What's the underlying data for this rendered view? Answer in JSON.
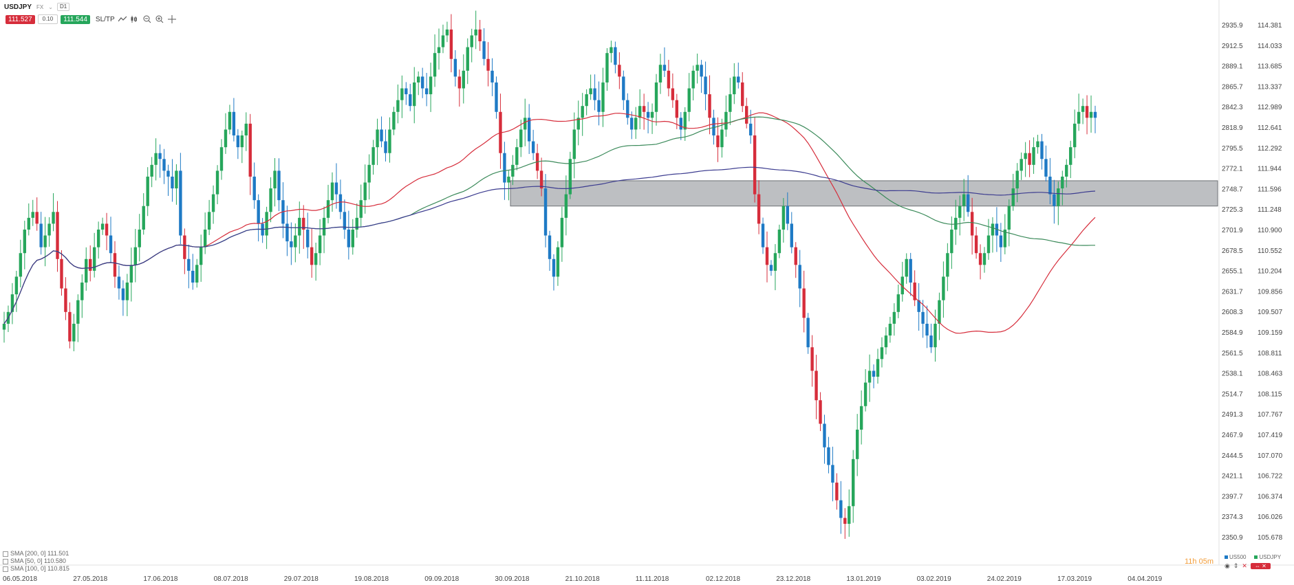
{
  "toolbar": {
    "symbol": "USDJPY",
    "market_tag": "FX",
    "interval": "D1",
    "bid": "111.527",
    "lot": "0.10",
    "ask": "111.544",
    "sltp_label": "SL/TP",
    "icons": [
      "line-chart-icon",
      "candles-icon",
      "zoom-out-icon",
      "zoom-in-icon",
      "crosshair-icon"
    ]
  },
  "legend": {
    "items": [
      {
        "label": "SMA [200, 0] 111.501",
        "color": "#3b3b8f"
      },
      {
        "label": "SMA [50, 0] 110.580",
        "color": "#d62d3b"
      },
      {
        "label": "SMA [100, 0] 110.815",
        "color": "#3b8a5a"
      }
    ]
  },
  "countdown": "11h 05m",
  "instruments": [
    {
      "label": "US500",
      "color": "#1e7ac5"
    },
    {
      "label": "USDJPY",
      "color": "#26a65b"
    }
  ],
  "colors": {
    "up": "#26a65b",
    "down_red": "#d62d3b",
    "down_blue": "#1e7ac5",
    "sma50": "#d62d3b",
    "sma100": "#3b8a5a",
    "sma200": "#3b3b8f",
    "zone": "#9a9da2"
  },
  "chart_data": {
    "type": "candlestick",
    "title": "",
    "left_axis": {
      "ticks": [
        "2935.9",
        "2912.5",
        "2889.1",
        "2865.7",
        "2842.3",
        "2818.9",
        "2795.5",
        "2772.1",
        "2748.7",
        "2725.3",
        "2701.9",
        "2678.5",
        "2655.1",
        "2631.7",
        "2608.3",
        "2584.9",
        "2561.5",
        "2538.1",
        "2514.7",
        "2491.3",
        "2467.9",
        "2444.5",
        "2421.1",
        "2397.7",
        "2374.3",
        "2350.9"
      ]
    },
    "right_axis": {
      "ticks": [
        "114.381",
        "114.033",
        "113.685",
        "113.337",
        "112.989",
        "112.641",
        "112.292",
        "111.944",
        "111.596",
        "111.248",
        "110.900",
        "110.552",
        "110.204",
        "109.856",
        "109.507",
        "109.159",
        "108.811",
        "108.463",
        "108.115",
        "107.767",
        "107.419",
        "107.070",
        "106.722",
        "106.374",
        "106.026",
        "105.678"
      ]
    },
    "x_ticks": [
      "06.05.2018",
      "27.05.2018",
      "17.06.2018",
      "08.07.2018",
      "29.07.2018",
      "19.08.2018",
      "09.09.2018",
      "30.09.2018",
      "21.10.2018",
      "11.11.2018",
      "02.12.2018",
      "23.12.2018",
      "13.01.2019",
      "03.02.2019",
      "24.02.2019",
      "17.03.2019",
      "04.04.2019"
    ],
    "zone": {
      "upper": 111.73,
      "lower": 111.3
    },
    "usdjpy_closes": [
      109.3,
      109.5,
      109.8,
      110.1,
      110.5,
      110.9,
      111.1,
      111.2,
      111.0,
      110.6,
      110.8,
      111.0,
      111.2,
      110.4,
      109.9,
      109.5,
      109.0,
      109.3,
      109.7,
      110.0,
      110.4,
      110.2,
      110.6,
      110.9,
      111.0,
      110.8,
      110.5,
      110.1,
      109.9,
      109.7,
      110.0,
      110.3,
      110.6,
      110.9,
      111.3,
      111.8,
      112.0,
      112.2,
      112.1,
      111.9,
      111.8,
      111.6,
      111.9,
      110.8,
      110.4,
      110.2,
      110.0,
      110.3,
      110.6,
      110.9,
      111.2,
      111.5,
      111.9,
      112.3,
      112.6,
      112.9,
      112.5,
      112.3,
      112.5,
      112.7,
      111.8,
      111.4,
      111.0,
      110.8,
      111.2,
      111.6,
      111.9,
      111.4,
      111.0,
      110.7,
      110.6,
      110.8,
      111.1,
      110.9,
      110.6,
      110.3,
      110.5,
      110.8,
      111.1,
      111.4,
      111.7,
      111.5,
      111.2,
      110.9,
      110.6,
      110.9,
      111.1,
      111.4,
      111.7,
      112.0,
      112.3,
      112.6,
      112.4,
      112.2,
      112.6,
      112.9,
      113.1,
      113.3,
      113.2,
      113.0,
      113.4,
      113.5,
      113.3,
      113.2,
      113.5,
      113.9,
      114.0,
      114.2,
      114.3,
      113.8,
      113.5,
      113.3,
      113.6,
      114.0,
      114.2,
      114.3,
      114.1,
      113.8,
      113.6,
      113.4,
      112.9,
      112.2,
      111.7,
      111.8,
      112.0,
      112.3,
      112.6,
      112.8,
      112.4,
      112.2,
      111.9,
      111.6,
      110.8,
      110.4,
      110.1,
      110.6,
      111.1,
      111.5,
      112.1,
      112.6,
      112.8,
      113.0,
      113.2,
      113.3,
      113.1,
      112.9,
      113.4,
      113.9,
      114.0,
      113.7,
      113.5,
      113.1,
      112.8,
      112.6,
      112.8,
      113.0,
      112.9,
      112.8,
      112.9,
      113.4,
      113.7,
      113.6,
      113.3,
      113.1,
      112.8,
      112.6,
      112.9,
      113.3,
      113.6,
      113.7,
      113.5,
      113.2,
      112.8,
      112.5,
      112.3,
      112.6,
      112.9,
      113.2,
      113.5,
      113.4,
      113.0,
      112.7,
      112.5,
      111.5,
      111.0,
      110.6,
      110.3,
      110.2,
      110.5,
      110.9,
      111.3,
      111.0,
      110.6,
      110.3,
      109.9,
      109.4,
      108.9,
      108.5,
      108.0,
      107.6,
      107.2,
      106.9,
      106.6,
      106.3,
      106.0,
      105.9,
      106.2,
      107.0,
      107.5,
      107.9,
      108.3,
      108.5,
      108.4,
      108.7,
      108.9,
      109.1,
      109.3,
      109.5,
      109.8,
      110.1,
      110.4,
      110.0,
      109.7,
      109.5,
      109.3,
      109.1,
      108.9,
      109.3,
      109.7,
      110.1,
      110.5,
      110.9,
      111.1,
      111.3,
      111.5,
      111.2,
      110.8,
      110.5,
      110.3,
      110.5,
      110.8,
      111.0,
      110.8,
      110.6,
      110.9,
      111.3,
      111.6,
      111.9,
      112.1,
      112.2,
      112.0,
      112.3,
      112.4,
      112.1,
      111.8,
      111.5,
      111.3,
      111.6,
      111.8,
      112.0,
      112.3,
      112.7,
      112.9,
      113.0,
      112.8,
      112.9,
      112.8
    ]
  }
}
